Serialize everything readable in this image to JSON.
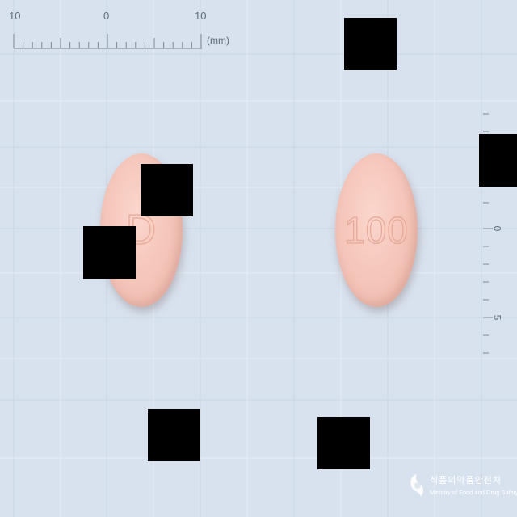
{
  "ruler": {
    "top_labels": [
      "10",
      "0",
      "10"
    ],
    "unit": "(mm)",
    "right_labels": [
      "0",
      "5"
    ]
  },
  "pills": [
    {
      "imprint": "D",
      "color": "#f4c4b8"
    },
    {
      "imprint": "100",
      "color": "#f4c4b8"
    }
  ],
  "logo": {
    "korean": "식품의약품안전처",
    "english": "Ministry of Food and Drug Safety"
  }
}
